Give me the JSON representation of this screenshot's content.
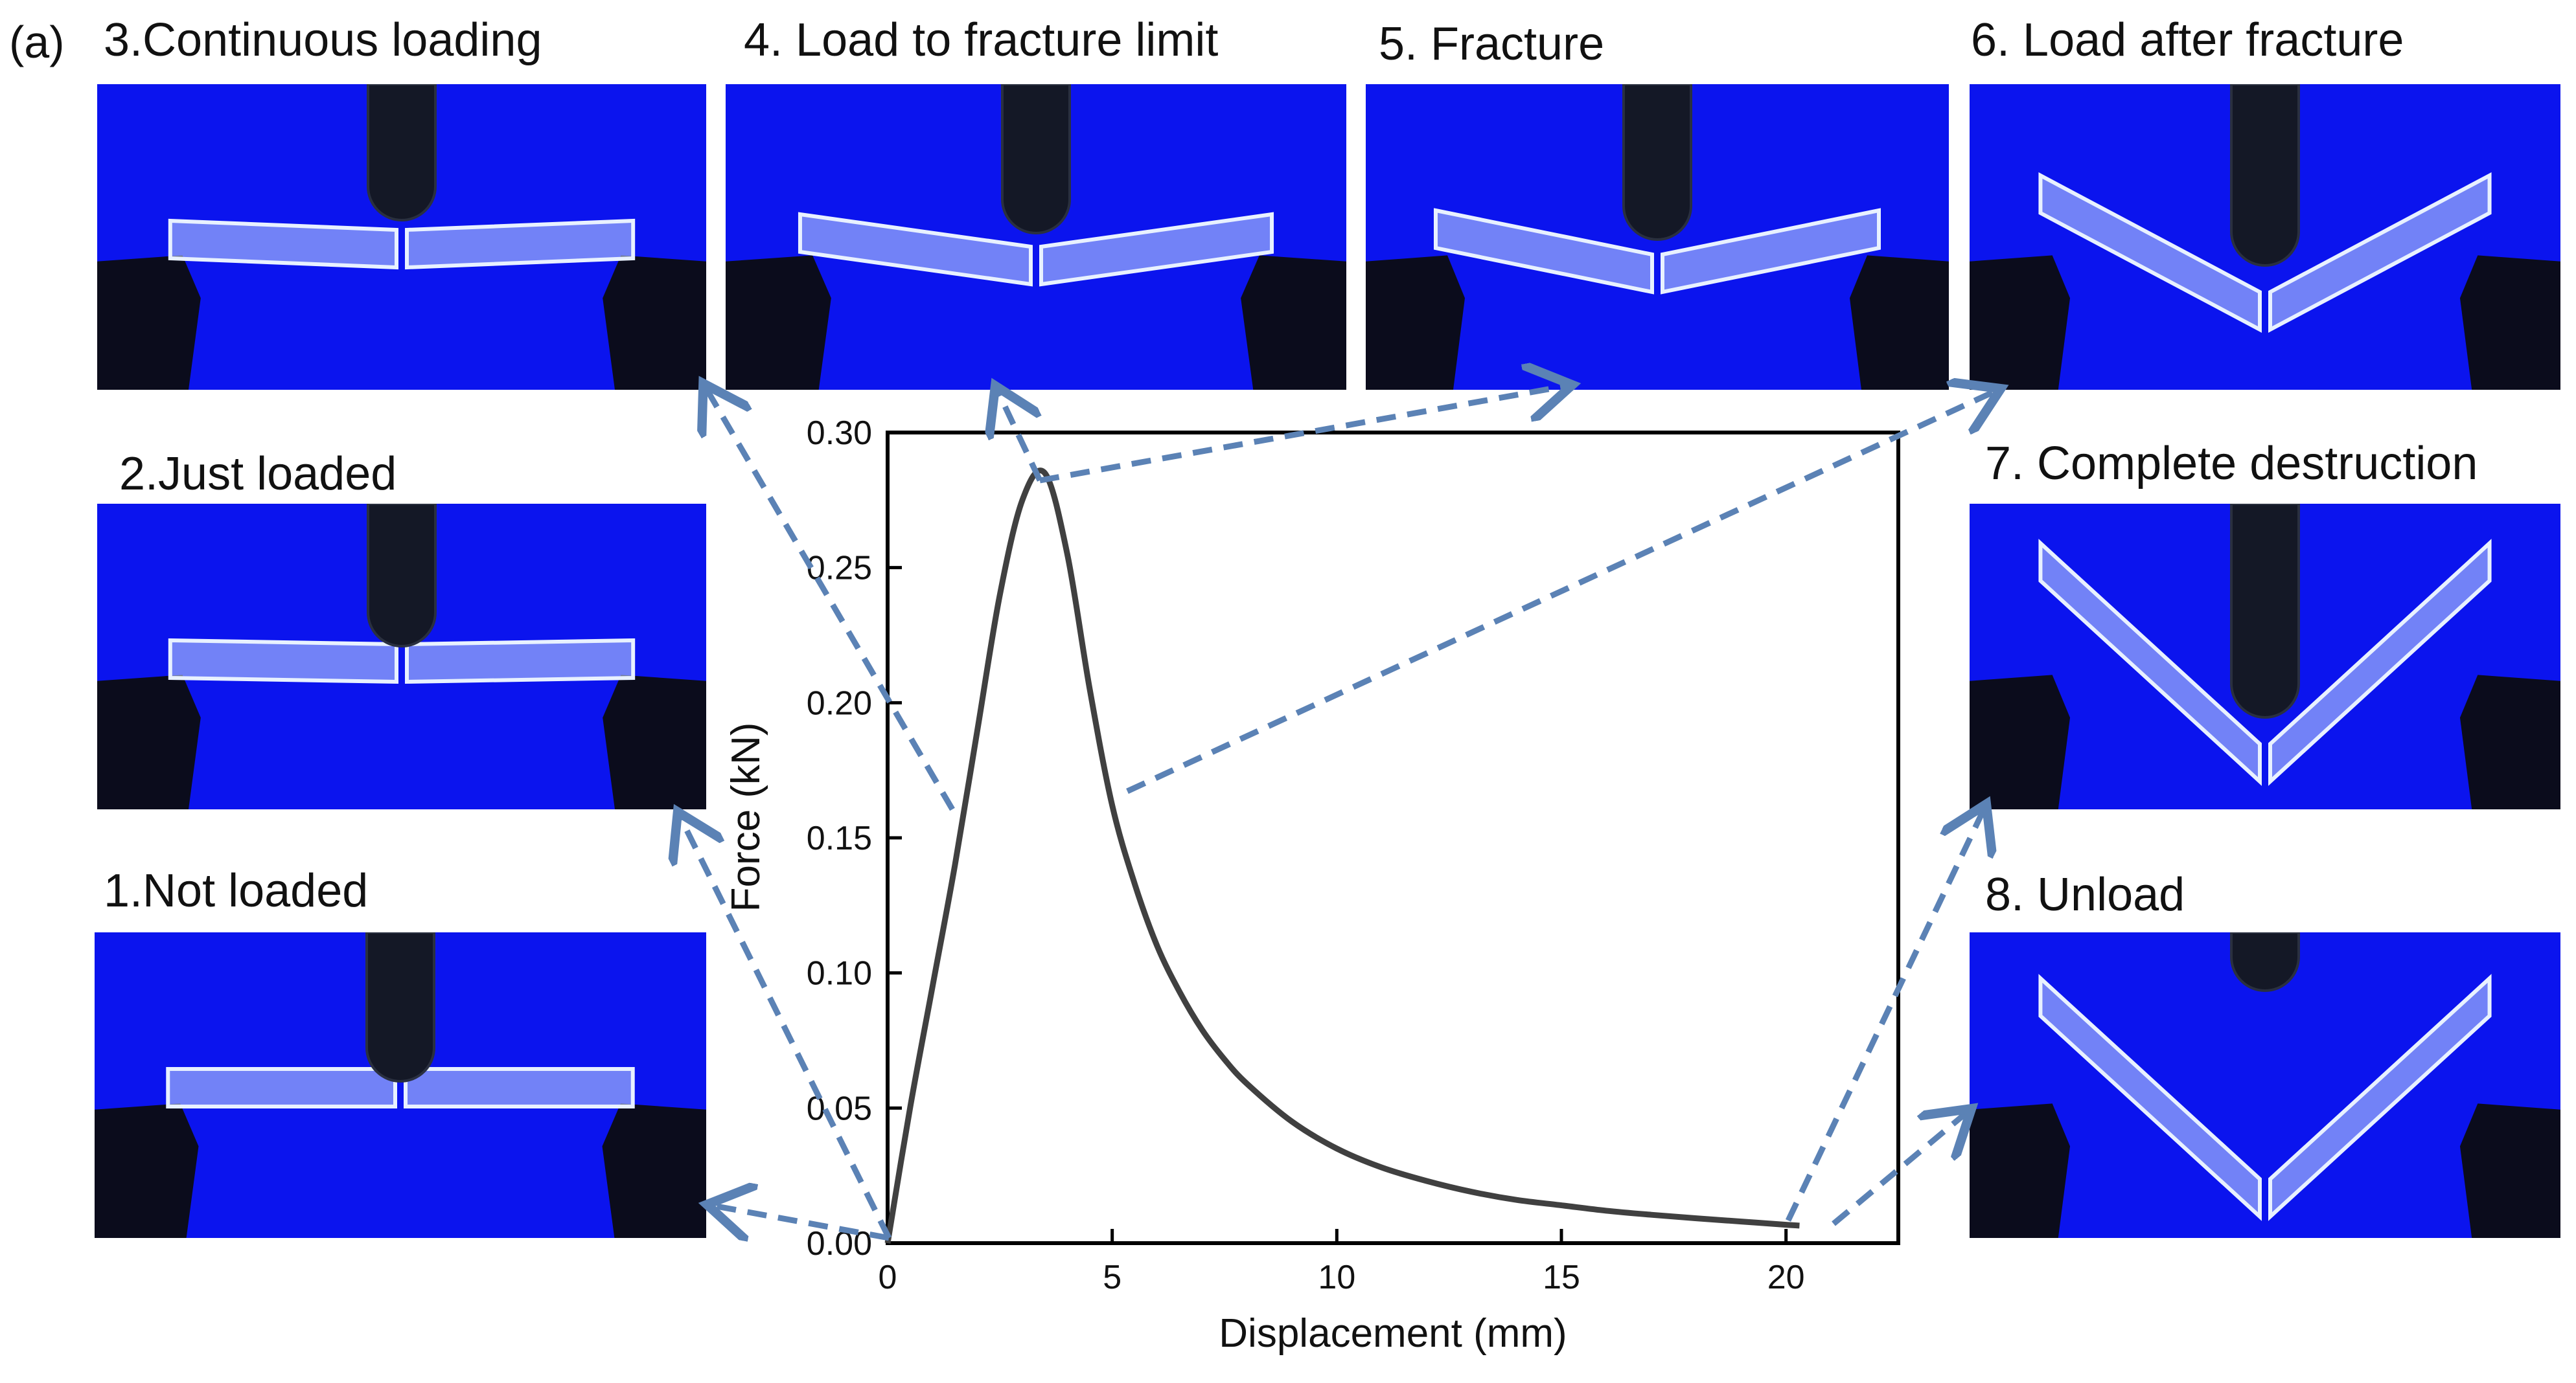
{
  "panel_label": "(a)",
  "panels": [
    {
      "caption": "1.Not loaded",
      "stage": "not-loaded"
    },
    {
      "caption": "2.Just loaded",
      "stage": "just-loaded"
    },
    {
      "caption": "3.Continuous loading",
      "stage": "continuous-loading"
    },
    {
      "caption": "4. Load to fracture limit",
      "stage": "fracture-limit"
    },
    {
      "caption": "5. Fracture",
      "stage": "fracture"
    },
    {
      "caption": "6. Load after fracture",
      "stage": "after-fracture"
    },
    {
      "caption": "7. Complete destruction",
      "stage": "complete-destruction"
    },
    {
      "caption": "8. Unload",
      "stage": "unload"
    }
  ],
  "colors": {
    "photo_background": "#0b14ee",
    "arrow": "#5b82b5",
    "curve": "#404040"
  },
  "chart_data": {
    "type": "line",
    "xlabel": "Displacement (mm)",
    "ylabel": "Force (kN)",
    "xlim": [
      0,
      22.5
    ],
    "ylim": [
      0,
      0.3
    ],
    "xticks": [
      0,
      5,
      10,
      15,
      20
    ],
    "yticks": [
      0.0,
      0.05,
      0.1,
      0.15,
      0.2,
      0.25,
      0.3
    ],
    "xtick_labels": [
      "0",
      "5",
      "10",
      "15",
      "20"
    ],
    "ytick_labels": [
      "0.00",
      "0.05",
      "0.10",
      "0.15",
      "0.20",
      "0.25",
      "0.30"
    ],
    "grid": false,
    "series": [
      {
        "x": [
          0,
          0.5,
          1.0,
          1.5,
          2.0,
          2.5,
          3.0,
          3.5,
          4.0,
          4.5,
          5.0,
          5.5,
          6.0,
          6.5,
          7.0,
          7.5,
          8.0,
          9.0,
          10.0,
          11.0,
          12.0,
          13.0,
          14.0,
          15.0,
          16.0,
          17.0,
          18.0,
          19.0,
          20.0,
          20.3
        ],
        "y": [
          0.0,
          0.05,
          0.095,
          0.14,
          0.19,
          0.24,
          0.275,
          0.285,
          0.255,
          0.205,
          0.162,
          0.133,
          0.11,
          0.093,
          0.079,
          0.068,
          0.059,
          0.045,
          0.035,
          0.028,
          0.023,
          0.019,
          0.016,
          0.014,
          0.012,
          0.0105,
          0.0092,
          0.008,
          0.0068,
          0.0065
        ]
      }
    ]
  }
}
